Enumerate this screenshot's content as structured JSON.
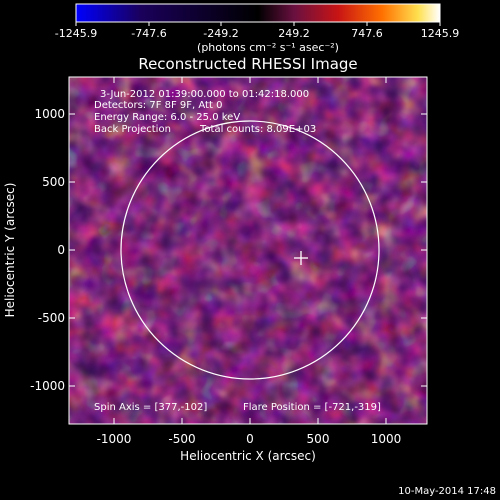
{
  "colorbar": {
    "ticks": [
      "-1245.9",
      "-747.6",
      "-249.2",
      "249.2",
      "747.6",
      "1245.9"
    ],
    "units": "(photons cm⁻² s⁻¹ asec⁻²)",
    "colors": [
      "#0000ff",
      "#1a005a",
      "#000000",
      "#6a1040",
      "#c81414",
      "#ff7000",
      "#ffe050",
      "#ffffff"
    ]
  },
  "title": "Reconstructed RHESSI Image",
  "info": {
    "time": "3-Jun-2012 01:39:00.000 to 01:42:18.000",
    "detectors": "Detectors: 7F 8F 9F, Att 0",
    "energy": "Energy Range: 6.0 - 25.0 keV",
    "method": "Back Projection",
    "counts": "Total counts: 8.09E+03"
  },
  "footer": {
    "spin_axis": "Spin Axis = [377,-102]",
    "flare_position": "Flare Position = [-721,-319]",
    "timestamp": "10-May-2014 17:48"
  },
  "axes": {
    "xlabel": "Heliocentric X (arcsec)",
    "ylabel": "Heliocentric Y (arcsec)",
    "xticks": [
      "-1000",
      "-500",
      "0",
      "500",
      "1000"
    ],
    "yticks": [
      "1000",
      "500",
      "0",
      "-500",
      "-1000"
    ]
  }
}
